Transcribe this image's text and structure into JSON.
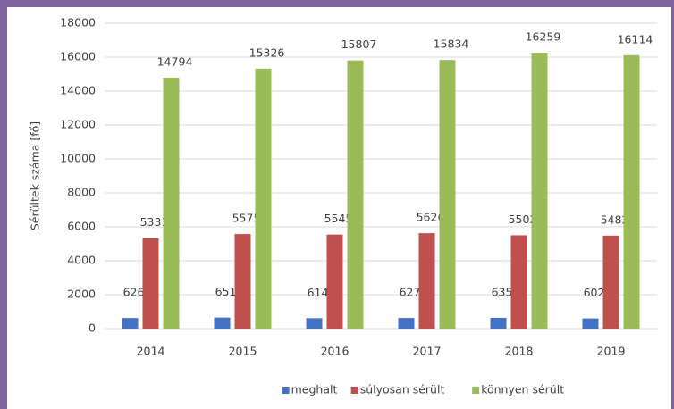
{
  "chart_data": {
    "type": "bar",
    "y_label": "Sérültek száma [fő]",
    "categories": [
      "2014",
      "2015",
      "2016",
      "2017",
      "2018",
      "2019"
    ],
    "series": [
      {
        "name": "meghalt",
        "color": "#4472c4",
        "values": [
          626,
          651,
          614,
          627,
          635,
          602
        ]
      },
      {
        "name": "súlyosan sérült",
        "color": "#c0504d",
        "values": [
          5331,
          5575,
          5545,
          5626,
          5502,
          5482
        ]
      },
      {
        "name": "könnyen sérült",
        "color": "#9bbb59",
        "values": [
          14794,
          15326,
          15807,
          15834,
          16259,
          16114
        ]
      }
    ],
    "ylim": [
      0,
      18000
    ],
    "yticks": [
      0,
      2000,
      4000,
      6000,
      8000,
      10000,
      12000,
      14000,
      16000,
      18000
    ],
    "grid": true,
    "legend": "bottom"
  }
}
